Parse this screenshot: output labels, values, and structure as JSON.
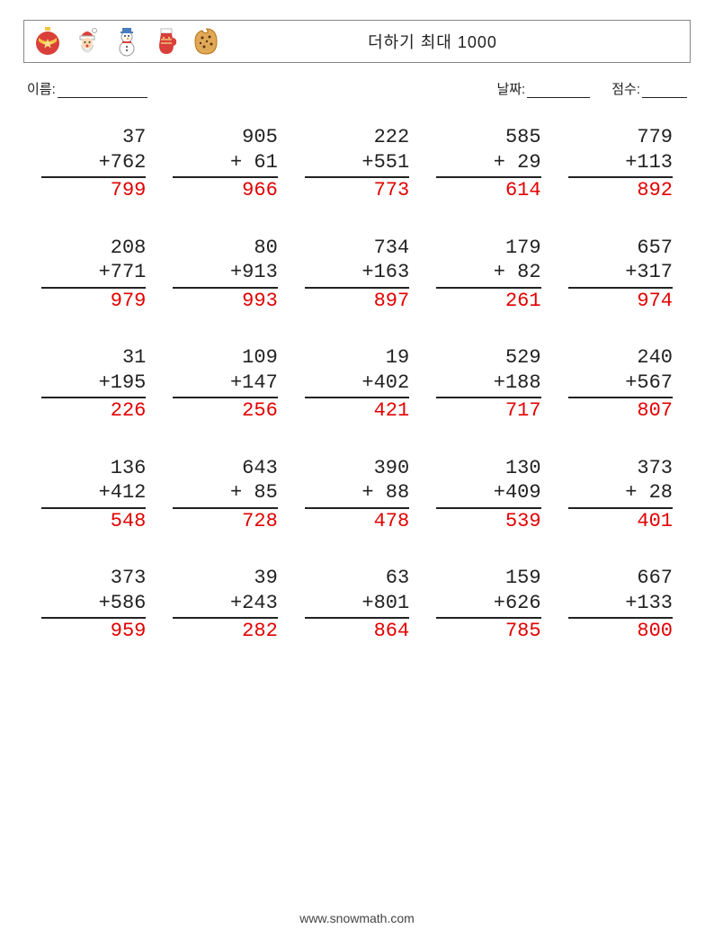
{
  "header": {
    "title": "더하기 최대 1000",
    "icons": [
      "ornament",
      "santa",
      "snowman",
      "mitten",
      "cookie"
    ]
  },
  "meta": {
    "name_label": "이름:",
    "date_label": "날짜:",
    "score_label": "점수:"
  },
  "style": {
    "answer_color": "#e20000",
    "text_color": "#222222",
    "font_family_mono": "Courier New",
    "font_size_problem": 22,
    "columns": 5,
    "rows": 5,
    "digit_width": 3
  },
  "problems": [
    {
      "a": 37,
      "b": 762,
      "ans": 799
    },
    {
      "a": 905,
      "b": 61,
      "ans": 966
    },
    {
      "a": 222,
      "b": 551,
      "ans": 773
    },
    {
      "a": 585,
      "b": 29,
      "ans": 614
    },
    {
      "a": 779,
      "b": 113,
      "ans": 892
    },
    {
      "a": 208,
      "b": 771,
      "ans": 979
    },
    {
      "a": 80,
      "b": 913,
      "ans": 993
    },
    {
      "a": 734,
      "b": 163,
      "ans": 897
    },
    {
      "a": 179,
      "b": 82,
      "ans": 261
    },
    {
      "a": 657,
      "b": 317,
      "ans": 974
    },
    {
      "a": 31,
      "b": 195,
      "ans": 226
    },
    {
      "a": 109,
      "b": 147,
      "ans": 256
    },
    {
      "a": 19,
      "b": 402,
      "ans": 421
    },
    {
      "a": 529,
      "b": 188,
      "ans": 717
    },
    {
      "a": 240,
      "b": 567,
      "ans": 807
    },
    {
      "a": 136,
      "b": 412,
      "ans": 548
    },
    {
      "a": 643,
      "b": 85,
      "ans": 728
    },
    {
      "a": 390,
      "b": 88,
      "ans": 478
    },
    {
      "a": 130,
      "b": 409,
      "ans": 539
    },
    {
      "a": 373,
      "b": 28,
      "ans": 401
    },
    {
      "a": 373,
      "b": 586,
      "ans": 959
    },
    {
      "a": 39,
      "b": 243,
      "ans": 282
    },
    {
      "a": 63,
      "b": 801,
      "ans": 864
    },
    {
      "a": 159,
      "b": 626,
      "ans": 785
    },
    {
      "a": 667,
      "b": 133,
      "ans": 800
    }
  ],
  "footer": "www.snowmath.com"
}
